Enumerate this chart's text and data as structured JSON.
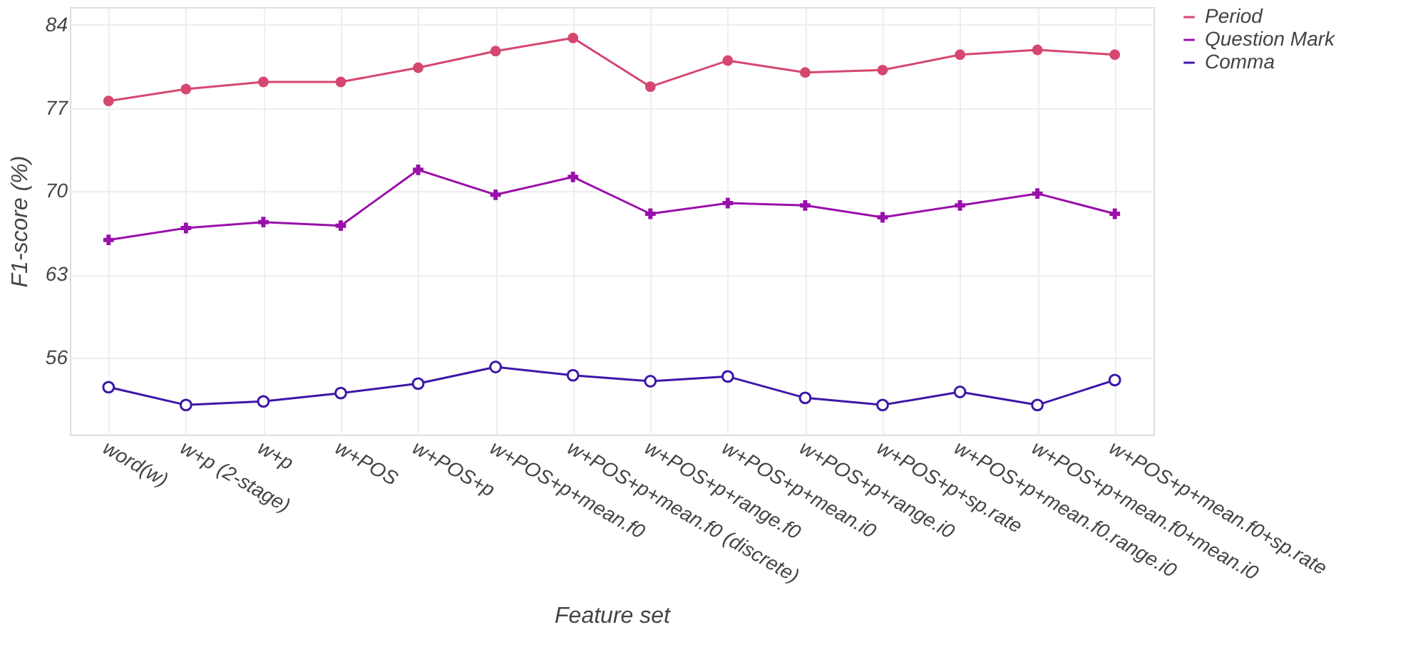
{
  "chart_data": {
    "type": "line",
    "xlabel": "Feature set",
    "ylabel": "F1-score (%)",
    "categories": [
      "word(w)",
      "w+p (2-stage)",
      "w+p",
      "w+POS",
      "w+POS+p",
      "w+POS+p+mean.f0",
      "w+POS+p+mean.f0 (discrete)",
      "w+POS+p+range.f0",
      "w+POS+p+mean.i0",
      "w+POS+p+range.i0",
      "w+POS+p+sp.rate",
      "w+POS+p+mean.f0.range.i0",
      "w+POS+p+mean.f0+mean.i0",
      "w+POS+p+mean.f0+sp.rate"
    ],
    "series": [
      {
        "name": "Period",
        "color": "#d6476f",
        "marker": "circle",
        "values": [
          77.6,
          78.6,
          79.2,
          79.2,
          80.4,
          81.8,
          82.9,
          78.8,
          81.0,
          80.0,
          80.2,
          81.5,
          81.9,
          81.5
        ]
      },
      {
        "name": "Question Mark",
        "color": "#9a10aa",
        "marker": "cross",
        "values": [
          65.9,
          66.9,
          67.4,
          67.1,
          71.8,
          69.7,
          71.2,
          68.1,
          69.0,
          68.8,
          67.8,
          68.8,
          69.8,
          68.1
        ]
      },
      {
        "name": "Comma",
        "color": "#3d17a8",
        "marker": "circle_open",
        "values": [
          53.5,
          52.0,
          52.3,
          53.0,
          53.8,
          55.2,
          54.5,
          54.0,
          54.4,
          52.6,
          52.0,
          53.1,
          52.0,
          54.1
        ]
      }
    ],
    "ylim": [
      49.5,
      85.5
    ],
    "yticks": [
      56,
      63,
      70,
      77,
      84
    ],
    "grid": true,
    "legend": "top right",
    "line_style": "solid"
  }
}
